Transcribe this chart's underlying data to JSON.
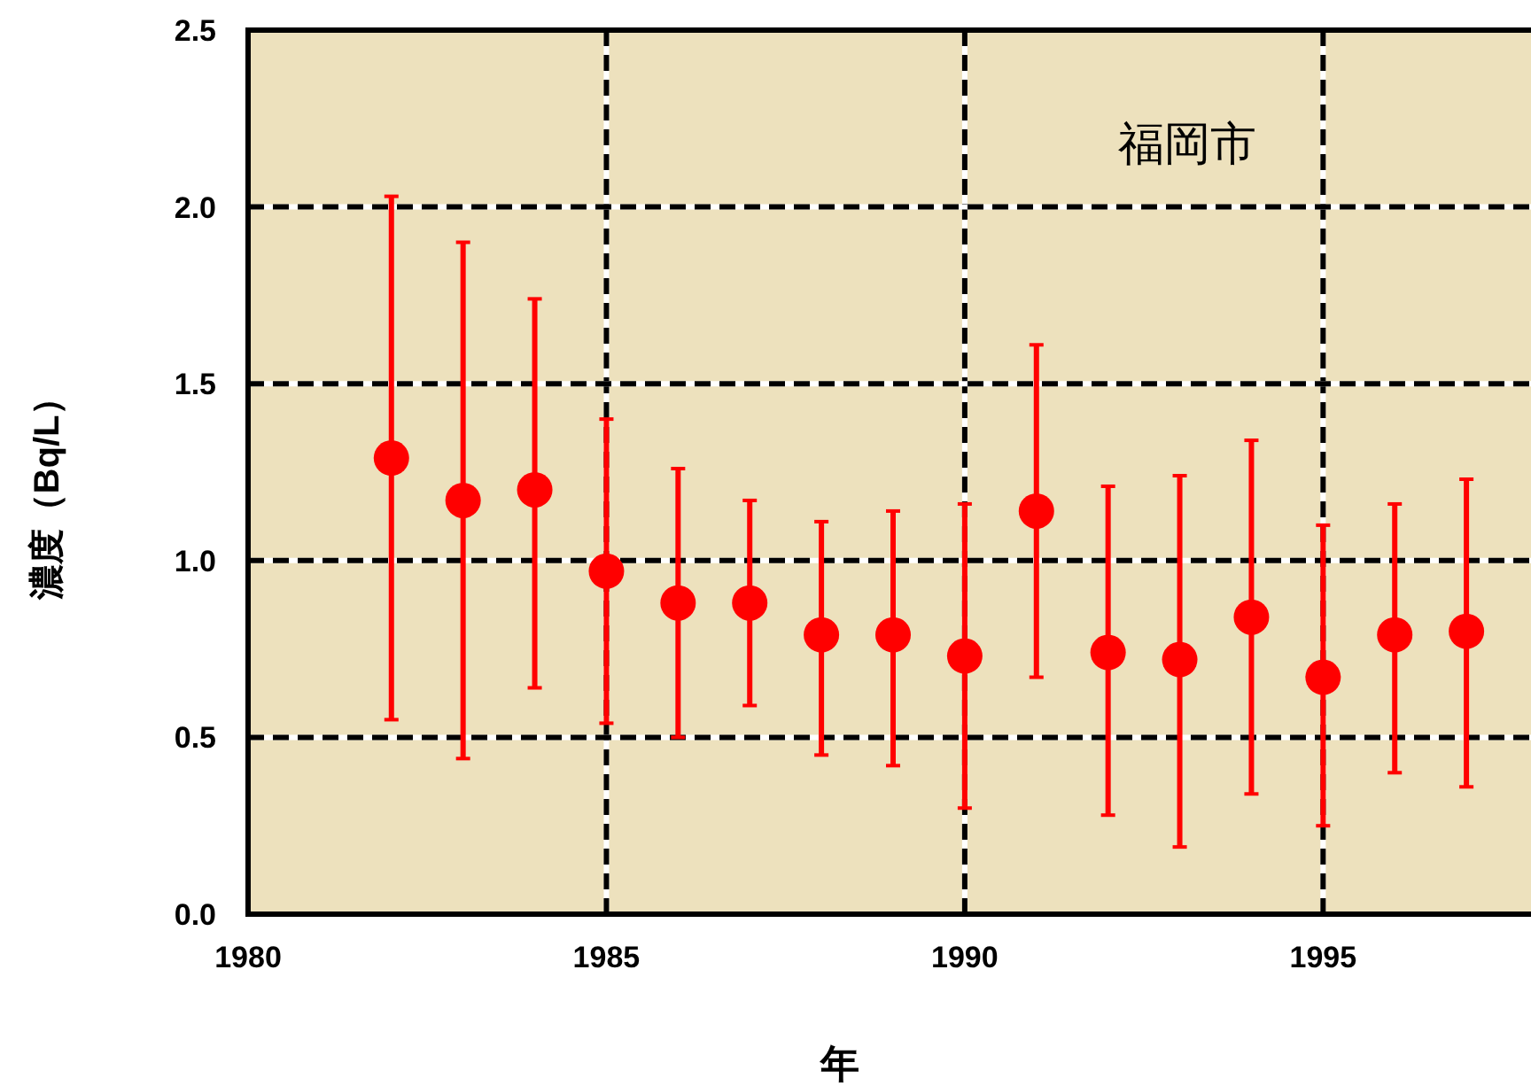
{
  "chart_data": {
    "type": "scatter",
    "xlabel": "年",
    "ylabel": "濃度（Bq/L）",
    "annotations": [
      "福岡市"
    ],
    "x": [
      1982,
      1983,
      1984,
      1985,
      1986,
      1987,
      1988,
      1989,
      1990,
      1991,
      1992,
      1993,
      1994,
      1995,
      1996,
      1997
    ],
    "series": [
      {
        "color": "#ff0000",
        "values": [
          1.29,
          1.17,
          1.2,
          0.97,
          0.88,
          0.88,
          0.79,
          0.79,
          0.73,
          1.14,
          0.74,
          0.72,
          0.84,
          0.67,
          0.79,
          0.8
        ],
        "errors": [
          [
            0.55,
            2.03
          ],
          [
            0.44,
            1.9
          ],
          [
            0.64,
            1.74
          ],
          [
            0.54,
            1.4
          ],
          [
            0.5,
            1.26
          ],
          [
            0.59,
            1.17
          ],
          [
            0.45,
            1.11
          ],
          [
            0.42,
            1.14
          ],
          [
            0.3,
            1.16
          ],
          [
            0.67,
            1.61
          ],
          [
            0.28,
            1.21
          ],
          [
            0.19,
            1.24
          ],
          [
            0.34,
            1.34
          ],
          [
            0.25,
            1.1
          ],
          [
            0.4,
            1.16
          ],
          [
            0.36,
            1.23
          ]
        ]
      }
    ],
    "marker": "circle",
    "grid": true,
    "xlim": [
      1980,
      1998
    ],
    "xticks": [
      1980,
      1985,
      1990,
      1995
    ],
    "ylim": [
      0,
      2.5
    ],
    "yticks": [
      {
        "value": 0,
        "label": "0.0"
      },
      0.5,
      {
        "value": 1,
        "label": "1.0"
      },
      1.5,
      {
        "value": 2,
        "label": "2.0"
      },
      2.5
    ]
  }
}
